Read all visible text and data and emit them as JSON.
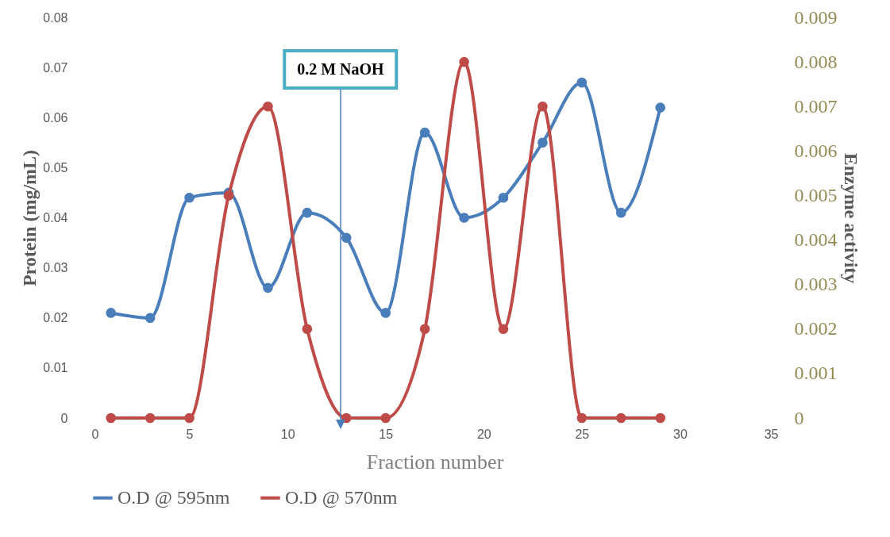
{
  "chart_data": {
    "type": "line",
    "xlabel": "Fraction number",
    "ylabel": "Protein (mg/mL)",
    "y2label": "Enzyme activity",
    "x": [
      1,
      3,
      5,
      7,
      9,
      11,
      13,
      15,
      17,
      19,
      21,
      23,
      25,
      27,
      29
    ],
    "series": [
      {
        "name": "O.D @ 595nm",
        "color": "#4a7ebb",
        "values": [
          0.021,
          0.02,
          0.044,
          0.045,
          0.026,
          0.041,
          0.036,
          0.021,
          0.057,
          0.04,
          0.044,
          0.055,
          0.067,
          0.041,
          0.062
        ]
      },
      {
        "name": "O.D @ 570nm",
        "color": "#be4b48",
        "axis": "y2",
        "values": [
          0,
          0,
          0,
          0.005,
          0.007,
          0.002,
          0,
          0,
          0.002,
          0.008,
          0.002,
          0.007,
          0,
          0,
          0
        ]
      }
    ],
    "xlim": [
      0,
      35
    ],
    "xticks": [
      0,
      5,
      10,
      15,
      20,
      25,
      30,
      35
    ],
    "ylim": [
      0,
      0.08
    ],
    "yticks": [
      0,
      0.01,
      0.02,
      0.03,
      0.04,
      0.05,
      0.06,
      0.07,
      0.08
    ],
    "y2lim": [
      0,
      0.009
    ],
    "y2ticks": [
      0,
      0.001,
      0.002,
      0.003,
      0.004,
      0.005,
      0.006,
      0.007,
      0.008,
      0.009
    ],
    "annotations": [
      {
        "text": "0.2 M NaOH",
        "x": 12.7,
        "y": 0
      }
    ],
    "marker": "circle",
    "line_style": "solid",
    "grid": false,
    "legend": "bottom"
  }
}
